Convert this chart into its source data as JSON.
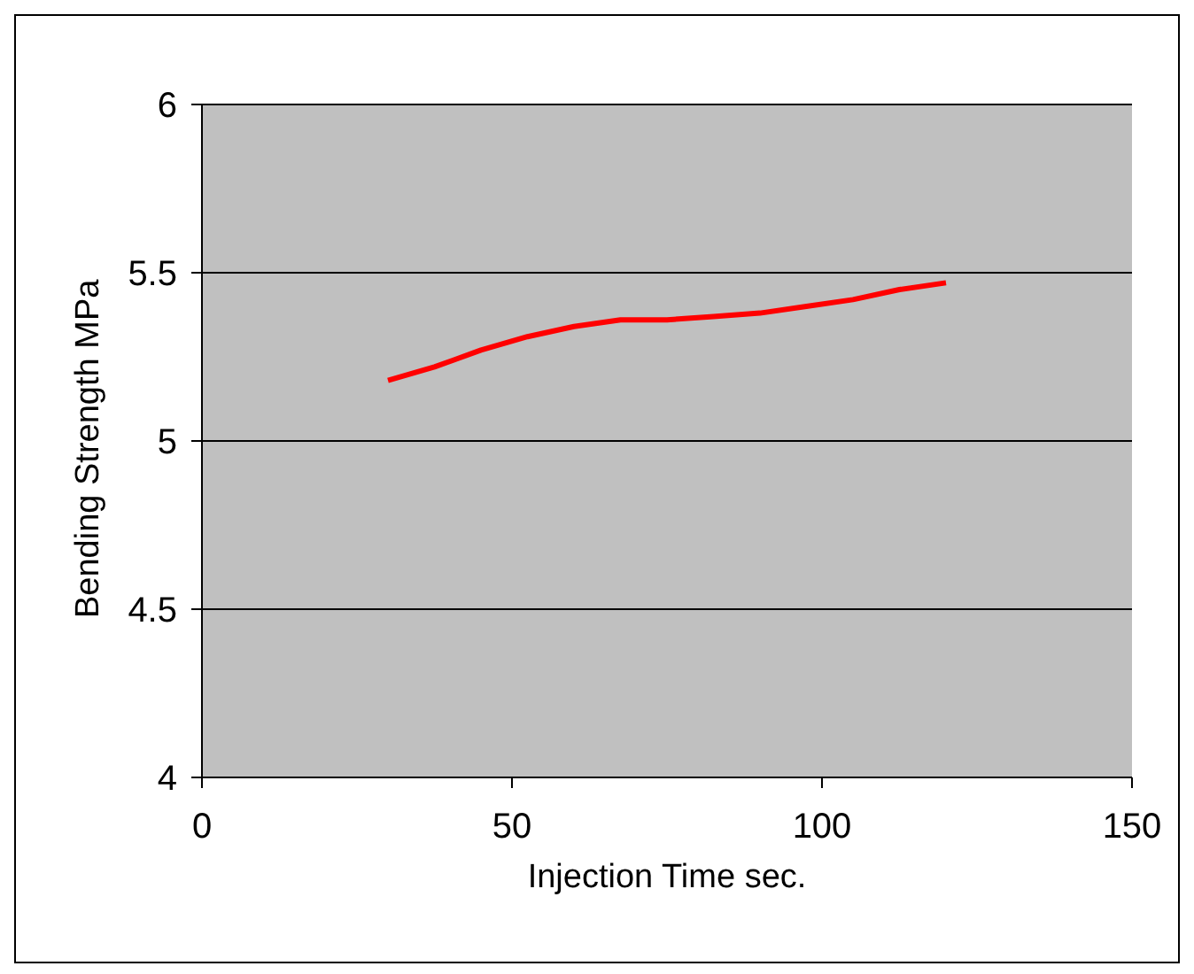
{
  "chart_data": {
    "type": "line",
    "xlabel": "Injection Time    sec.",
    "ylabel": "Bending Strength MPa",
    "x": [
      30,
      37.5,
      45,
      52.5,
      60,
      67.5,
      75,
      82.5,
      90,
      97.5,
      105,
      112.5,
      120
    ],
    "series": [
      {
        "color": "#ff0000",
        "values": [
          5.18,
          5.22,
          5.27,
          5.31,
          5.34,
          5.36,
          5.36,
          5.37,
          5.38,
          5.4,
          5.42,
          5.45,
          5.47
        ]
      }
    ],
    "xlim": [
      0,
      150
    ],
    "xticks": [
      0,
      50,
      100,
      150
    ],
    "ylim": [
      4,
      6
    ],
    "yticks": [
      4,
      4.5,
      5,
      5.5,
      6
    ],
    "grid": "y",
    "marker": "none",
    "line_style": "solid",
    "legend": false
  }
}
